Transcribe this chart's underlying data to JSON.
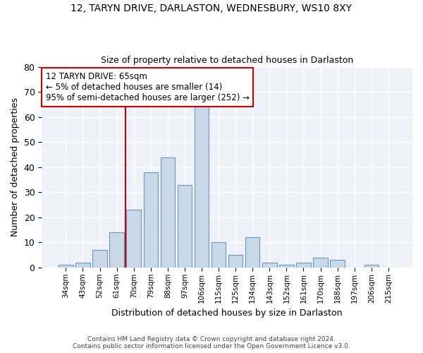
{
  "title1": "12, TARYN DRIVE, DARLASTON, WEDNESBURY, WS10 8XY",
  "title2": "Size of property relative to detached houses in Darlaston",
  "xlabel": "Distribution of detached houses by size in Darlaston",
  "ylabel": "Number of detached properties",
  "categories": [
    "34sqm",
    "43sqm",
    "52sqm",
    "61sqm",
    "70sqm",
    "79sqm",
    "88sqm",
    "97sqm",
    "106sqm",
    "115sqm",
    "125sqm",
    "134sqm",
    "143sqm",
    "152sqm",
    "161sqm",
    "170sqm",
    "188sqm",
    "197sqm",
    "206sqm",
    "215sqm"
  ],
  "values": [
    1,
    2,
    7,
    14,
    23,
    38,
    44,
    33,
    65,
    10,
    5,
    12,
    2,
    1,
    2,
    4,
    3,
    0,
    1,
    0
  ],
  "bar_color": "#c8d8e8",
  "bar_edge_color": "#6699bb",
  "vline_color": "#cc0000",
  "vline_x": 3.5,
  "annotation_text": "12 TARYN DRIVE: 65sqm\n← 5% of detached houses are smaller (14)\n95% of semi-detached houses are larger (252) →",
  "annotation_box_color": "#ffffff",
  "annotation_box_edge": "#cc0000",
  "ylim": [
    0,
    80
  ],
  "yticks": [
    0,
    10,
    20,
    30,
    40,
    50,
    60,
    70,
    80
  ],
  "footer1": "Contains HM Land Registry data © Crown copyright and database right 2024.",
  "footer2": "Contains public sector information licensed under the Open Government Licence v3.0.",
  "bg_color": "#ffffff",
  "plot_bg_color": "#eef2f8",
  "grid_color": "#ffffff"
}
